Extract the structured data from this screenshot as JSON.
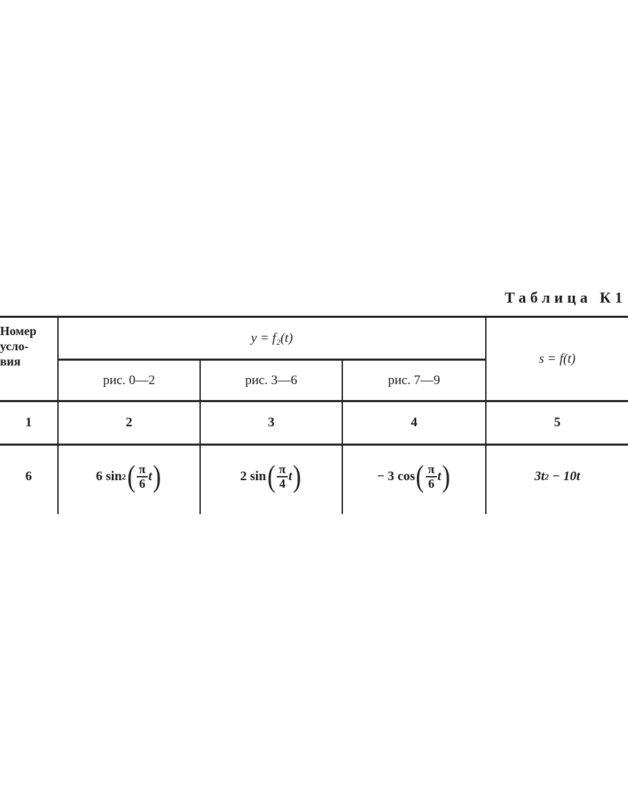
{
  "table_title": "Таблица К1",
  "header": {
    "col1": "Номер усло- вия",
    "col1_lines": [
      "Номер",
      "усло-",
      "вия"
    ],
    "group_label": "y = f₂(t)",
    "sub": [
      "рис. 0—2",
      "рис. 3—6",
      "рис. 7—9"
    ],
    "last": "s = f(t)"
  },
  "numbering_row": [
    "1",
    "2",
    "3",
    "4",
    "5"
  ],
  "data_row": {
    "condition": "6",
    "f1": {
      "coef": "6 sin",
      "power": "2",
      "num": "π",
      "den": "6",
      "var": "t"
    },
    "f2": {
      "coef": "2 sin",
      "num": "π",
      "den": "4",
      "var": "t"
    },
    "f3": {
      "coef": "− 3 cos",
      "num": "π",
      "den": "6",
      "var": "t"
    },
    "s": {
      "a": "3t",
      "power": "2",
      "rest": " − 10t"
    }
  }
}
